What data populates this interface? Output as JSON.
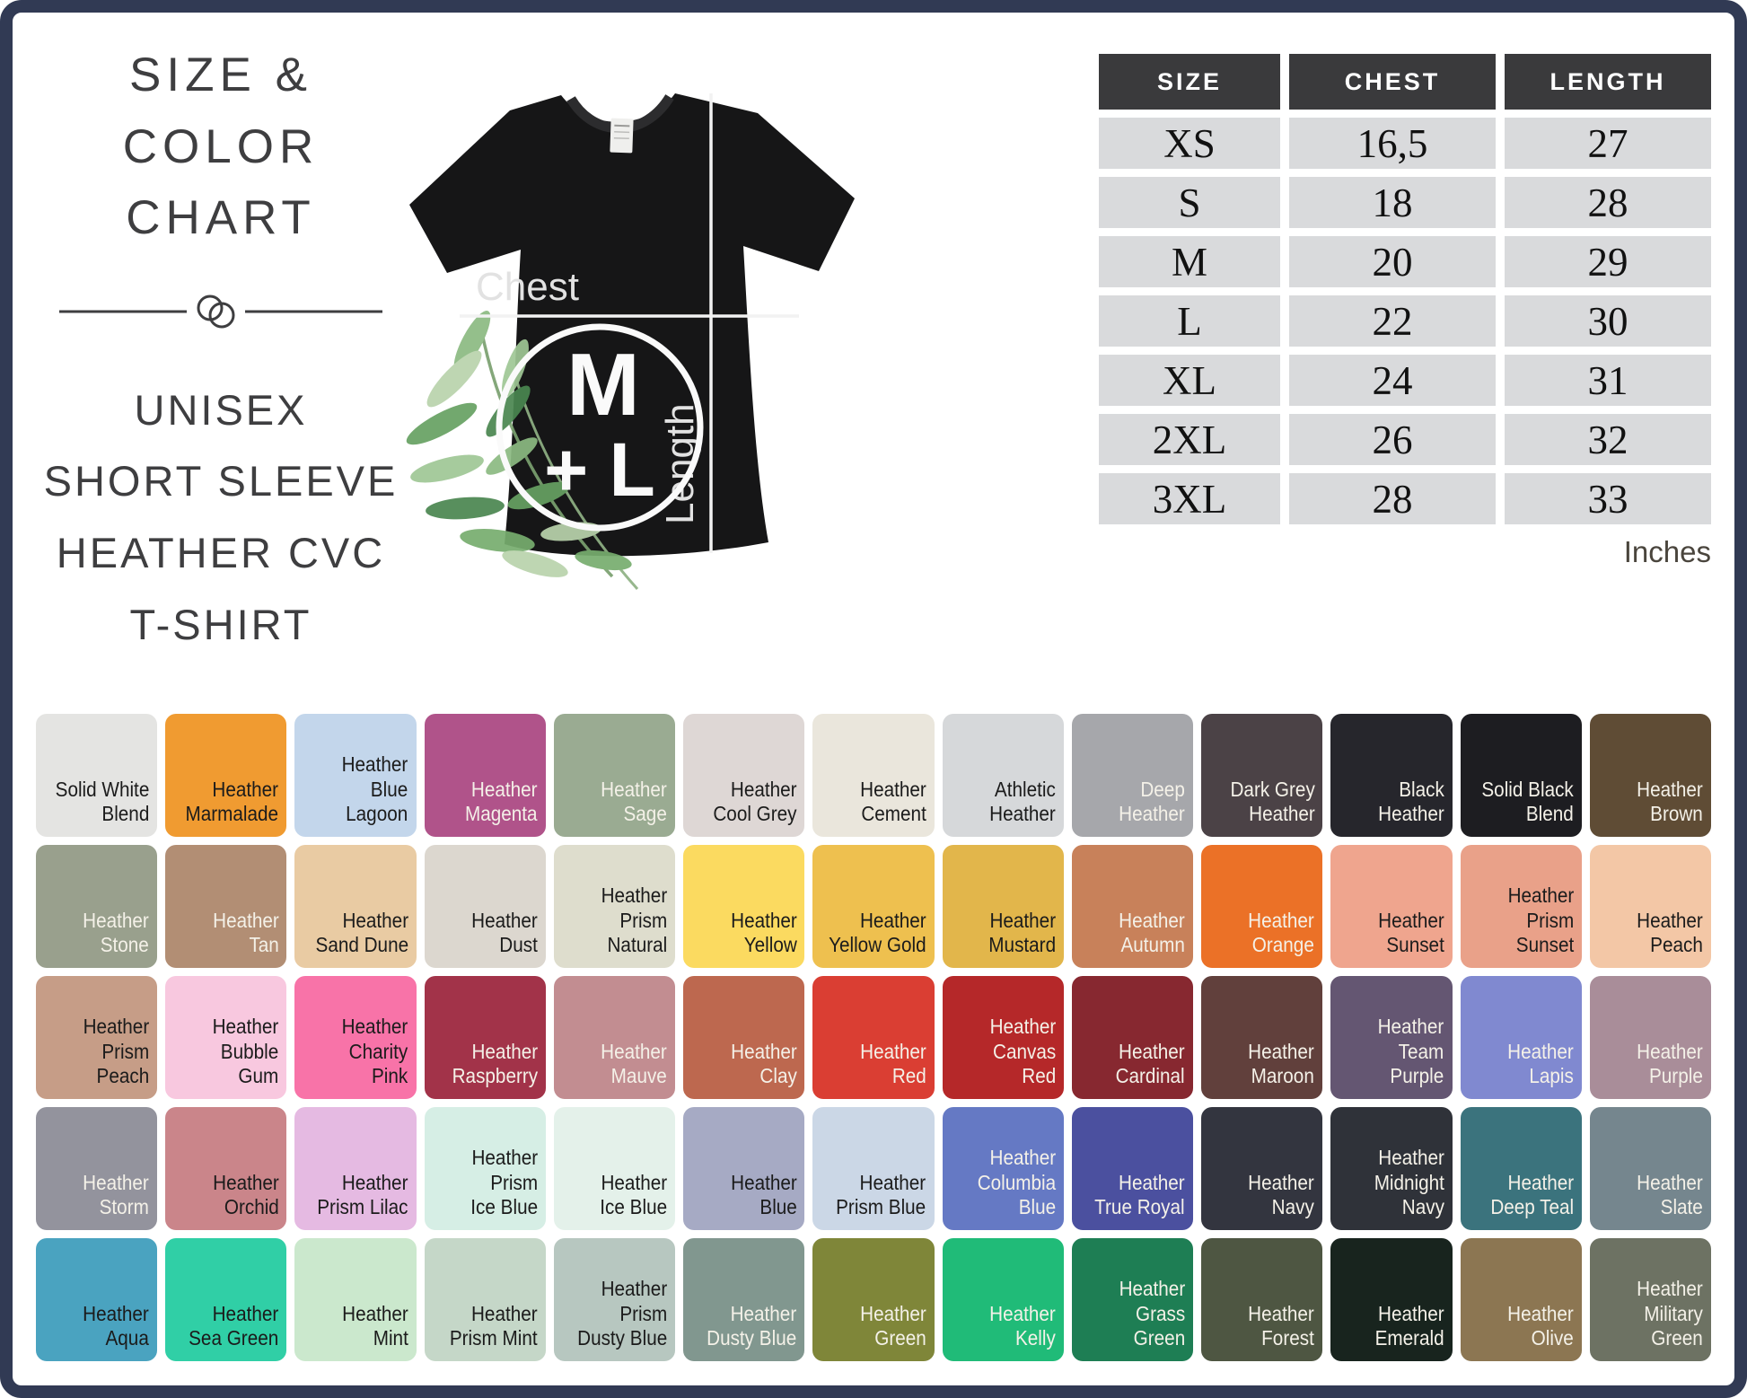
{
  "page": {
    "border_color": "#313a54",
    "background": "#ffffff"
  },
  "title_block": {
    "title": "SIZE & COLOR\nCHART",
    "subtitle": "UNISEX\nSHORT SLEEVE\nHEATHER CVC\nT-SHIRT"
  },
  "shirt": {
    "chest_label": "Chest",
    "length_label": "Length",
    "badge_size_top": "M",
    "badge_size_bottom": "+ L"
  },
  "size_table": {
    "headers": [
      "SIZE",
      "CHEST",
      "LENGTH"
    ],
    "rows": [
      {
        "size": "XS",
        "chest": "16,5",
        "length": "27"
      },
      {
        "size": "S",
        "chest": "18",
        "length": "28"
      },
      {
        "size": "M",
        "chest": "20",
        "length": "29"
      },
      {
        "size": "L",
        "chest": "22",
        "length": "30"
      },
      {
        "size": "XL",
        "chest": "24",
        "length": "31"
      },
      {
        "size": "2XL",
        "chest": "26",
        "length": "32"
      },
      {
        "size": "3XL",
        "chest": "28",
        "length": "33"
      }
    ],
    "unit_note": "Inches"
  },
  "color_grid": {
    "columns": 13,
    "swatches": [
      {
        "name": "Solid White Blend",
        "lines": [
          "Solid White",
          "Blend"
        ],
        "bg": "#e4e4e2",
        "text": "dark"
      },
      {
        "name": "Heather Marmalade",
        "lines": [
          "Heather",
          "Marmalade"
        ],
        "bg": "#f09b31",
        "text": "dark"
      },
      {
        "name": "Heather Blue Lagoon",
        "lines": [
          "Heather",
          "Blue Lagoon"
        ],
        "bg": "#c3d6eb",
        "text": "dark"
      },
      {
        "name": "Heather Magenta",
        "lines": [
          "Heather",
          "Magenta"
        ],
        "bg": "#b0538a",
        "text": "light"
      },
      {
        "name": "Heather Sage",
        "lines": [
          "Heather",
          "Sage"
        ],
        "bg": "#9aab92",
        "text": "light"
      },
      {
        "name": "Heather Cool Grey",
        "lines": [
          "Heather",
          "Cool Grey"
        ],
        "bg": "#ded7d5",
        "text": "dark"
      },
      {
        "name": "Heather Cement",
        "lines": [
          "Heather",
          "Cement"
        ],
        "bg": "#eae6dc",
        "text": "dark"
      },
      {
        "name": "Athletic Heather",
        "lines": [
          "Athletic",
          "Heather"
        ],
        "bg": "#d6d8da",
        "text": "dark"
      },
      {
        "name": "Deep Heather",
        "lines": [
          "Deep",
          "Heather"
        ],
        "bg": "#a6a7ab",
        "text": "light"
      },
      {
        "name": "Dark Grey Heather",
        "lines": [
          "Dark Grey",
          "Heather"
        ],
        "bg": "#4b4246",
        "text": "light"
      },
      {
        "name": "Black Heather",
        "lines": [
          "Black",
          "Heather"
        ],
        "bg": "#26262c",
        "text": "light"
      },
      {
        "name": "Solid Black Blend",
        "lines": [
          "Solid Black",
          "Blend"
        ],
        "bg": "#1d1d21",
        "text": "light"
      },
      {
        "name": "Heather Brown",
        "lines": [
          "Heather",
          "Brown"
        ],
        "bg": "#5f4c35",
        "text": "light"
      },
      {
        "name": "Heather Stone",
        "lines": [
          "Heather",
          "Stone"
        ],
        "bg": "#99a08d",
        "text": "light"
      },
      {
        "name": "Heather Tan",
        "lines": [
          "Heather",
          "Tan"
        ],
        "bg": "#b28e74",
        "text": "light"
      },
      {
        "name": "Heather Sand Dune",
        "lines": [
          "Heather",
          "Sand Dune"
        ],
        "bg": "#e9cba3",
        "text": "dark"
      },
      {
        "name": "Heather Dust",
        "lines": [
          "Heather",
          "Dust"
        ],
        "bg": "#dcd7cf",
        "text": "dark"
      },
      {
        "name": "Heather Prism Natural",
        "lines": [
          "Heather",
          "Prism Natural"
        ],
        "bg": "#deddcd",
        "text": "dark"
      },
      {
        "name": "Heather Yellow",
        "lines": [
          "Heather",
          "Yellow"
        ],
        "bg": "#fbda60",
        "text": "dark"
      },
      {
        "name": "Heather Yellow Gold",
        "lines": [
          "Heather",
          "Yellow Gold"
        ],
        "bg": "#eec04f",
        "text": "dark"
      },
      {
        "name": "Heather Mustard",
        "lines": [
          "Heather",
          "Mustard"
        ],
        "bg": "#e2b64b",
        "text": "dark"
      },
      {
        "name": "Heather Autumn",
        "lines": [
          "Heather",
          "Autumn"
        ],
        "bg": "#c8815a",
        "text": "light"
      },
      {
        "name": "Heather Orange",
        "lines": [
          "Heather",
          "Orange"
        ],
        "bg": "#eb7127",
        "text": "light"
      },
      {
        "name": "Heather Sunset",
        "lines": [
          "Heather",
          "Sunset"
        ],
        "bg": "#efa58e",
        "text": "dark"
      },
      {
        "name": "Heather Prism Sunset",
        "lines": [
          "Heather",
          "Prism Sunset"
        ],
        "bg": "#e9a189",
        "text": "dark"
      },
      {
        "name": "Heather Peach",
        "lines": [
          "Heather",
          "Peach"
        ],
        "bg": "#f3c7a6",
        "text": "dark"
      },
      {
        "name": "Heather Prism Peach",
        "lines": [
          "Heather",
          "Prism Peach"
        ],
        "bg": "#c69d87",
        "text": "dark"
      },
      {
        "name": "Heather Bubble Gum",
        "lines": [
          "Heather",
          "Bubble Gum"
        ],
        "bg": "#f8c8df",
        "text": "dark"
      },
      {
        "name": "Heather Charity Pink",
        "lines": [
          "Heather",
          "Charity Pink"
        ],
        "bg": "#f873a8",
        "text": "dark"
      },
      {
        "name": "Heather Raspberry",
        "lines": [
          "Heather",
          "Raspberry"
        ],
        "bg": "#a23349",
        "text": "light"
      },
      {
        "name": "Heather Mauve",
        "lines": [
          "Heather",
          "Mauve"
        ],
        "bg": "#c28d91",
        "text": "light"
      },
      {
        "name": "Heather Clay",
        "lines": [
          "Heather",
          "Clay"
        ],
        "bg": "#bd684f",
        "text": "light"
      },
      {
        "name": "Heather Red",
        "lines": [
          "Heather",
          "Red"
        ],
        "bg": "#da3e33",
        "text": "light"
      },
      {
        "name": "Heather Canvas Red",
        "lines": [
          "Heather",
          "Canvas Red"
        ],
        "bg": "#b52829",
        "text": "light"
      },
      {
        "name": "Heather Cardinal",
        "lines": [
          "Heather",
          "Cardinal"
        ],
        "bg": "#872830",
        "text": "light"
      },
      {
        "name": "Heather Maroon",
        "lines": [
          "Heather",
          "Maroon"
        ],
        "bg": "#61403c",
        "text": "light"
      },
      {
        "name": "Heather Team Purple",
        "lines": [
          "Heather",
          "Team Purple"
        ],
        "bg": "#645672",
        "text": "light"
      },
      {
        "name": "Heather Lapis",
        "lines": [
          "Heather",
          "Lapis"
        ],
        "bg": "#8089d0",
        "text": "light"
      },
      {
        "name": "Heather Purple",
        "lines": [
          "Heather",
          "Purple"
        ],
        "bg": "#a98d99",
        "text": "light"
      },
      {
        "name": "Heather Storm",
        "lines": [
          "Heather",
          "Storm"
        ],
        "bg": "#93939d",
        "text": "light"
      },
      {
        "name": "Heather Orchid",
        "lines": [
          "Heather",
          "Orchid"
        ],
        "bg": "#ca858a",
        "text": "dark"
      },
      {
        "name": "Heather Prism Lilac",
        "lines": [
          "Heather",
          "Prism Lilac"
        ],
        "bg": "#e5bae2",
        "text": "dark"
      },
      {
        "name": "Heather Prism Ice Blue",
        "lines": [
          "Heather",
          "Prism",
          "Ice Blue"
        ],
        "bg": "#d6eee5",
        "text": "dark"
      },
      {
        "name": "Heather Ice Blue",
        "lines": [
          "Heather",
          "Ice Blue"
        ],
        "bg": "#e4f1ea",
        "text": "dark"
      },
      {
        "name": "Heather Blue",
        "lines": [
          "Heather",
          "Blue"
        ],
        "bg": "#a6aac4",
        "text": "dark"
      },
      {
        "name": "Heather Prism Blue",
        "lines": [
          "Heather",
          "Prism Blue"
        ],
        "bg": "#cbd7e6",
        "text": "dark"
      },
      {
        "name": "Heather Columbia Blue",
        "lines": [
          "Heather",
          "Columbia",
          "Blue"
        ],
        "bg": "#6579c4",
        "text": "light"
      },
      {
        "name": "Heather True Royal",
        "lines": [
          "Heather",
          "True Royal"
        ],
        "bg": "#4b509f",
        "text": "light"
      },
      {
        "name": "Heather Navy",
        "lines": [
          "Heather",
          "Navy"
        ],
        "bg": "#33353f",
        "text": "light"
      },
      {
        "name": "Heather Midnight Navy",
        "lines": [
          "Heather",
          "Midnight",
          "Navy"
        ],
        "bg": "#2f3239",
        "text": "light"
      },
      {
        "name": "Heather Deep Teal",
        "lines": [
          "Heather",
          "Deep Teal"
        ],
        "bg": "#3b737d",
        "text": "light"
      },
      {
        "name": "Heather Slate",
        "lines": [
          "Heather",
          "Slate"
        ],
        "bg": "#75868e",
        "text": "light"
      },
      {
        "name": "Heather Aqua",
        "lines": [
          "Heather",
          "Aqua"
        ],
        "bg": "#4aa3c0",
        "text": "dark"
      },
      {
        "name": "Heather Sea Green",
        "lines": [
          "Heather",
          "Sea Green"
        ],
        "bg": "#30cfa6",
        "text": "dark"
      },
      {
        "name": "Heather Mint",
        "lines": [
          "Heather",
          "Mint"
        ],
        "bg": "#cbe8cd",
        "text": "dark"
      },
      {
        "name": "Heather Prism Mint",
        "lines": [
          "Heather",
          "Prism Mint"
        ],
        "bg": "#c5d7c8",
        "text": "dark"
      },
      {
        "name": "Heather Prism Dusty Blue",
        "lines": [
          "Heather",
          "Prism",
          "Dusty Blue"
        ],
        "bg": "#b7c7c0",
        "text": "dark"
      },
      {
        "name": "Heather Dusty Blue",
        "lines": [
          "Heather",
          "Dusty Blue"
        ],
        "bg": "#81978f",
        "text": "light"
      },
      {
        "name": "Heather Green",
        "lines": [
          "Heather",
          "Green"
        ],
        "bg": "#7f8639",
        "text": "light"
      },
      {
        "name": "Heather Kelly",
        "lines": [
          "Heather",
          "Kelly"
        ],
        "bg": "#20bb78",
        "text": "light"
      },
      {
        "name": "Heather Grass Green",
        "lines": [
          "Heather",
          "Grass Green"
        ],
        "bg": "#1e7e54",
        "text": "light"
      },
      {
        "name": "Heather Forest",
        "lines": [
          "Heather",
          "Forest"
        ],
        "bg": "#4e5642",
        "text": "light"
      },
      {
        "name": "Heather Emerald",
        "lines": [
          "Heather",
          "Emerald"
        ],
        "bg": "#18241e",
        "text": "light"
      },
      {
        "name": "Heather Olive",
        "lines": [
          "Heather",
          "Olive"
        ],
        "bg": "#8c7652",
        "text": "light"
      },
      {
        "name": "Heather Military Green",
        "lines": [
          "Heather",
          "Military",
          "Green"
        ],
        "bg": "#6d7263",
        "text": "light"
      }
    ]
  }
}
